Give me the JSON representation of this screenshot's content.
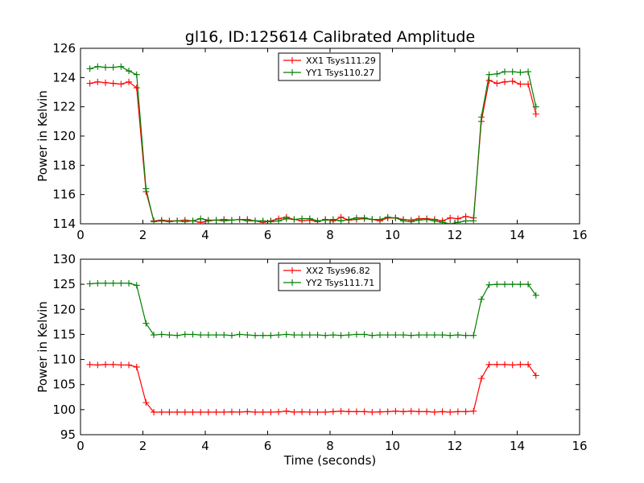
{
  "title": "gl16, ID:125614 Calibrated Amplitude",
  "colors": {
    "xx": "#ff0000",
    "yy": "#007f00"
  },
  "chart_data": [
    {
      "type": "line",
      "title": "gl16, ID:125614 Calibrated Amplitude",
      "xlabel": "",
      "ylabel": "Power in Kelvin",
      "xlim": [
        0,
        16
      ],
      "ylim": [
        114,
        126
      ],
      "xticks": [
        0,
        2,
        4,
        6,
        8,
        10,
        12,
        14,
        16
      ],
      "yticks": [
        114,
        116,
        118,
        120,
        122,
        124,
        126
      ],
      "grid": false,
      "legend": "top-center",
      "series": [
        {
          "name": "XX1 Tsys111.29",
          "color": "#ff0000",
          "points": [
            [
              0.3,
              123.6
            ],
            [
              0.55,
              123.7
            ],
            [
              0.8,
              123.65
            ],
            [
              1.05,
              123.6
            ],
            [
              1.3,
              123.55
            ],
            [
              1.55,
              123.7
            ],
            [
              1.8,
              123.3
            ],
            [
              2.1,
              116.2
            ],
            [
              2.35,
              114.2
            ],
            [
              2.6,
              114.25
            ],
            [
              2.85,
              114.2
            ],
            [
              3.1,
              114.2
            ],
            [
              3.35,
              114.25
            ],
            [
              3.6,
              114.2
            ],
            [
              3.85,
              114.1
            ],
            [
              4.1,
              114.2
            ],
            [
              4.35,
              114.25
            ],
            [
              4.6,
              114.3
            ],
            [
              4.85,
              114.25
            ],
            [
              5.1,
              114.3
            ],
            [
              5.35,
              114.3
            ],
            [
              5.6,
              114.2
            ],
            [
              5.85,
              114.1
            ],
            [
              6.1,
              114.2
            ],
            [
              6.35,
              114.35
            ],
            [
              6.6,
              114.45
            ],
            [
              6.85,
              114.3
            ],
            [
              7.1,
              114.2
            ],
            [
              7.35,
              114.25
            ],
            [
              7.6,
              114.15
            ],
            [
              7.85,
              114.3
            ],
            [
              8.1,
              114.2
            ],
            [
              8.35,
              114.45
            ],
            [
              8.6,
              114.25
            ],
            [
              8.85,
              114.3
            ],
            [
              9.1,
              114.35
            ],
            [
              9.35,
              114.3
            ],
            [
              9.6,
              114.2
            ],
            [
              9.85,
              114.4
            ],
            [
              10.1,
              114.4
            ],
            [
              10.35,
              114.3
            ],
            [
              10.6,
              114.25
            ],
            [
              10.85,
              114.35
            ],
            [
              11.1,
              114.35
            ],
            [
              11.35,
              114.3
            ],
            [
              11.6,
              114.2
            ],
            [
              11.85,
              114.4
            ],
            [
              12.1,
              114.35
            ],
            [
              12.35,
              114.5
            ],
            [
              12.6,
              114.4
            ],
            [
              12.85,
              121.0
            ],
            [
              13.1,
              123.8
            ],
            [
              13.35,
              123.6
            ],
            [
              13.6,
              123.7
            ],
            [
              13.85,
              123.75
            ],
            [
              14.1,
              123.55
            ],
            [
              14.35,
              123.55
            ],
            [
              14.6,
              121.5
            ]
          ]
        },
        {
          "name": "YY1 Tsys110.27",
          "color": "#007f00",
          "points": [
            [
              0.3,
              124.6
            ],
            [
              0.55,
              124.75
            ],
            [
              0.8,
              124.7
            ],
            [
              1.05,
              124.7
            ],
            [
              1.3,
              124.75
            ],
            [
              1.55,
              124.45
            ],
            [
              1.8,
              124.2
            ],
            [
              2.1,
              116.4
            ],
            [
              2.35,
              114.15
            ],
            [
              2.6,
              114.2
            ],
            [
              2.85,
              114.15
            ],
            [
              3.1,
              114.2
            ],
            [
              3.35,
              114.15
            ],
            [
              3.6,
              114.2
            ],
            [
              3.85,
              114.35
            ],
            [
              4.1,
              114.25
            ],
            [
              4.35,
              114.25
            ],
            [
              4.6,
              114.2
            ],
            [
              4.85,
              114.25
            ],
            [
              5.1,
              114.3
            ],
            [
              5.35,
              114.2
            ],
            [
              5.6,
              114.2
            ],
            [
              5.85,
              114.2
            ],
            [
              6.1,
              114.15
            ],
            [
              6.35,
              114.2
            ],
            [
              6.6,
              114.35
            ],
            [
              6.85,
              114.3
            ],
            [
              7.1,
              114.35
            ],
            [
              7.35,
              114.35
            ],
            [
              7.6,
              114.2
            ],
            [
              7.85,
              114.25
            ],
            [
              8.1,
              114.3
            ],
            [
              8.35,
              114.2
            ],
            [
              8.6,
              114.3
            ],
            [
              8.85,
              114.4
            ],
            [
              9.1,
              114.4
            ],
            [
              9.35,
              114.3
            ],
            [
              9.6,
              114.3
            ],
            [
              9.85,
              114.45
            ],
            [
              10.1,
              114.4
            ],
            [
              10.35,
              114.2
            ],
            [
              10.6,
              114.15
            ],
            [
              10.85,
              114.25
            ],
            [
              11.1,
              114.3
            ],
            [
              11.35,
              114.2
            ],
            [
              11.6,
              114.1
            ],
            [
              11.85,
              114.0
            ],
            [
              12.1,
              114.1
            ],
            [
              12.35,
              114.2
            ],
            [
              12.6,
              114.2
            ],
            [
              12.85,
              121.3
            ],
            [
              13.1,
              124.2
            ],
            [
              13.35,
              124.25
            ],
            [
              13.6,
              124.4
            ],
            [
              13.85,
              124.4
            ],
            [
              14.1,
              124.35
            ],
            [
              14.35,
              124.4
            ],
            [
              14.6,
              122.0
            ]
          ]
        }
      ]
    },
    {
      "type": "line",
      "title": "",
      "xlabel": "Time (seconds)",
      "ylabel": "Power in Kelvin",
      "xlim": [
        0,
        16
      ],
      "ylim": [
        95,
        130
      ],
      "xticks": [
        0,
        2,
        4,
        6,
        8,
        10,
        12,
        14,
        16
      ],
      "yticks": [
        95,
        100,
        105,
        110,
        115,
        120,
        125,
        130
      ],
      "grid": false,
      "legend": "top-center",
      "series": [
        {
          "name": "XX2 Tsys96.82",
          "color": "#ff0000",
          "points": [
            [
              0.3,
              109.0
            ],
            [
              0.55,
              108.9
            ],
            [
              0.8,
              109.0
            ],
            [
              1.05,
              109.0
            ],
            [
              1.3,
              108.9
            ],
            [
              1.55,
              108.9
            ],
            [
              1.8,
              108.5
            ],
            [
              2.1,
              101.4
            ],
            [
              2.35,
              99.5
            ],
            [
              2.6,
              99.5
            ],
            [
              2.85,
              99.5
            ],
            [
              3.1,
              99.5
            ],
            [
              3.35,
              99.5
            ],
            [
              3.6,
              99.5
            ],
            [
              3.85,
              99.5
            ],
            [
              4.1,
              99.5
            ],
            [
              4.35,
              99.5
            ],
            [
              4.6,
              99.5
            ],
            [
              4.85,
              99.55
            ],
            [
              5.1,
              99.5
            ],
            [
              5.35,
              99.6
            ],
            [
              5.6,
              99.5
            ],
            [
              5.85,
              99.5
            ],
            [
              6.1,
              99.5
            ],
            [
              6.35,
              99.55
            ],
            [
              6.6,
              99.7
            ],
            [
              6.85,
              99.5
            ],
            [
              7.1,
              99.55
            ],
            [
              7.35,
              99.5
            ],
            [
              7.6,
              99.5
            ],
            [
              7.85,
              99.5
            ],
            [
              8.1,
              99.6
            ],
            [
              8.35,
              99.7
            ],
            [
              8.6,
              99.6
            ],
            [
              8.85,
              99.6
            ],
            [
              9.1,
              99.6
            ],
            [
              9.35,
              99.5
            ],
            [
              9.6,
              99.55
            ],
            [
              9.85,
              99.6
            ],
            [
              10.1,
              99.7
            ],
            [
              10.35,
              99.6
            ],
            [
              10.6,
              99.7
            ],
            [
              10.85,
              99.6
            ],
            [
              11.1,
              99.6
            ],
            [
              11.35,
              99.5
            ],
            [
              11.6,
              99.6
            ],
            [
              11.85,
              99.5
            ],
            [
              12.1,
              99.6
            ],
            [
              12.35,
              99.6
            ],
            [
              12.6,
              99.7
            ],
            [
              12.85,
              106.2
            ],
            [
              13.1,
              109.0
            ],
            [
              13.35,
              109.0
            ],
            [
              13.6,
              109.0
            ],
            [
              13.85,
              108.9
            ],
            [
              14.1,
              109.0
            ],
            [
              14.35,
              109.0
            ],
            [
              14.6,
              106.8
            ]
          ]
        },
        {
          "name": "YY2 Tsys111.71",
          "color": "#007f00",
          "points": [
            [
              0.3,
              125.1
            ],
            [
              0.55,
              125.2
            ],
            [
              0.8,
              125.2
            ],
            [
              1.05,
              125.2
            ],
            [
              1.3,
              125.2
            ],
            [
              1.55,
              125.2
            ],
            [
              1.8,
              124.8
            ],
            [
              2.1,
              117.2
            ],
            [
              2.35,
              114.9
            ],
            [
              2.6,
              115.0
            ],
            [
              2.85,
              114.9
            ],
            [
              3.1,
              114.8
            ],
            [
              3.35,
              115.0
            ],
            [
              3.6,
              115.0
            ],
            [
              3.85,
              114.9
            ],
            [
              4.1,
              114.9
            ],
            [
              4.35,
              114.9
            ],
            [
              4.6,
              114.9
            ],
            [
              4.85,
              114.8
            ],
            [
              5.1,
              115.0
            ],
            [
              5.35,
              114.9
            ],
            [
              5.6,
              114.8
            ],
            [
              5.85,
              114.8
            ],
            [
              6.1,
              114.8
            ],
            [
              6.35,
              114.9
            ],
            [
              6.6,
              115.0
            ],
            [
              6.85,
              114.9
            ],
            [
              7.1,
              114.9
            ],
            [
              7.35,
              114.9
            ],
            [
              7.6,
              114.9
            ],
            [
              7.85,
              114.8
            ],
            [
              8.1,
              114.9
            ],
            [
              8.35,
              114.8
            ],
            [
              8.6,
              114.9
            ],
            [
              8.85,
              115.0
            ],
            [
              9.1,
              115.0
            ],
            [
              9.35,
              114.8
            ],
            [
              9.6,
              114.9
            ],
            [
              9.85,
              114.9
            ],
            [
              10.1,
              114.9
            ],
            [
              10.35,
              114.9
            ],
            [
              10.6,
              114.8
            ],
            [
              10.85,
              114.9
            ],
            [
              11.1,
              114.9
            ],
            [
              11.35,
              114.9
            ],
            [
              11.6,
              114.9
            ],
            [
              11.85,
              114.8
            ],
            [
              12.1,
              114.9
            ],
            [
              12.35,
              114.8
            ],
            [
              12.6,
              114.8
            ],
            [
              12.85,
              122.0
            ],
            [
              13.1,
              124.9
            ],
            [
              13.35,
              125.0
            ],
            [
              13.6,
              125.0
            ],
            [
              13.85,
              125.0
            ],
            [
              14.1,
              125.0
            ],
            [
              14.35,
              125.0
            ],
            [
              14.6,
              122.8
            ]
          ]
        }
      ]
    }
  ]
}
